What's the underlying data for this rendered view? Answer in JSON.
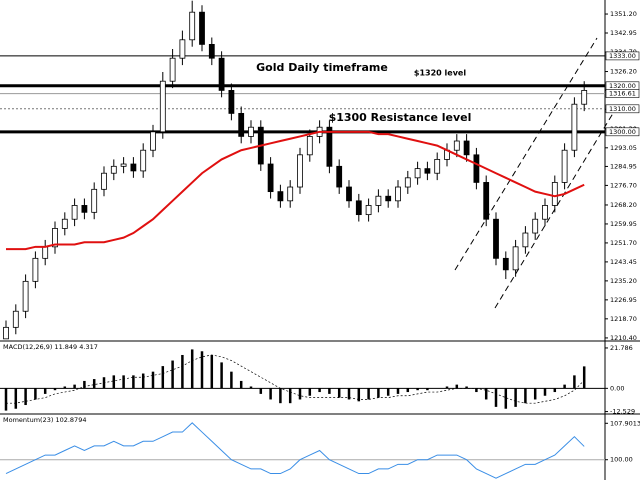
{
  "chart_data": {
    "type": "candlestick",
    "ylim": [
      1209.5,
      1357.3
    ],
    "yticks": [
      {
        "value": 1351.2,
        "label": "1351.20"
      },
      {
        "value": 1342.95,
        "label": "1342.95"
      },
      {
        "value": 1334.7,
        "label": "1334.70"
      },
      {
        "value": 1326.2,
        "label": "1326.20"
      },
      {
        "value": 1318.05,
        "label": "1318.05"
      },
      {
        "value": 1309.8,
        "label": "1309.80"
      },
      {
        "value": 1301.3,
        "label": "1301.30"
      },
      {
        "value": 1293.05,
        "label": "1293.05"
      },
      {
        "value": 1284.95,
        "label": "1284.95"
      },
      {
        "value": 1276.7,
        "label": "1276.70"
      },
      {
        "value": 1268.2,
        "label": "1268.20"
      },
      {
        "value": 1259.95,
        "label": "1259.95"
      },
      {
        "value": 1251.7,
        "label": "1251.70"
      },
      {
        "value": 1243.45,
        "label": "1243.45"
      },
      {
        "value": 1235.2,
        "label": "1235.20"
      },
      {
        "value": 1226.95,
        "label": "1226.95"
      },
      {
        "value": 1218.7,
        "label": "1218.70"
      },
      {
        "value": 1210.4,
        "label": "1210.40"
      }
    ],
    "annotations": [
      "Gold Daily timeframe",
      "$1320 level",
      "$1300 Resistance level"
    ],
    "levels": [
      {
        "value": 1333,
        "label": "1333.00",
        "style": "thin"
      },
      {
        "value": 1320,
        "label": "1320.00",
        "style": "thick"
      },
      {
        "value": 1316.61,
        "label": "1316.61",
        "style": "grey"
      },
      {
        "value": 1310,
        "label": "1310.00",
        "style": "dotted"
      },
      {
        "value": 1300,
        "label": "1300.00",
        "style": "thick"
      }
    ],
    "open": [
      1210,
      1215,
      1222,
      1235,
      1245,
      1250,
      1258,
      1262,
      1268,
      1265,
      1275,
      1282,
      1285,
      1286,
      1283,
      1292,
      1300,
      1322,
      1332,
      1340,
      1352,
      1338,
      1332,
      1318,
      1308,
      1298,
      1302,
      1286,
      1274,
      1270,
      1276,
      1290,
      1298,
      1302,
      1285,
      1276,
      1270,
      1264,
      1268,
      1272,
      1270,
      1276,
      1280,
      1284,
      1282,
      1288,
      1292,
      1296,
      1290,
      1278,
      1262,
      1245,
      1240,
      1250,
      1256,
      1262,
      1268,
      1278,
      1292,
      1312
    ],
    "high": [
      1218,
      1225,
      1238,
      1248,
      1253,
      1261,
      1265,
      1271,
      1271,
      1278,
      1285,
      1288,
      1289,
      1289,
      1295,
      1303,
      1326,
      1336,
      1344,
      1357,
      1355,
      1341,
      1335,
      1321,
      1311,
      1305,
      1305,
      1289,
      1277,
      1279,
      1293,
      1301,
      1305,
      1305,
      1288,
      1279,
      1273,
      1271,
      1275,
      1275,
      1279,
      1283,
      1287,
      1287,
      1291,
      1295,
      1299,
      1299,
      1293,
      1281,
      1265,
      1248,
      1253,
      1259,
      1265,
      1271,
      1281,
      1295,
      1315,
      1322
    ],
    "low": [
      1210,
      1212,
      1219,
      1232,
      1242,
      1247,
      1255,
      1259,
      1262,
      1262,
      1272,
      1279,
      1282,
      1280,
      1280,
      1289,
      1297,
      1319,
      1329,
      1337,
      1335,
      1329,
      1315,
      1305,
      1295,
      1295,
      1283,
      1271,
      1267,
      1267,
      1273,
      1287,
      1295,
      1282,
      1273,
      1267,
      1261,
      1261,
      1265,
      1267,
      1267,
      1273,
      1277,
      1279,
      1279,
      1285,
      1289,
      1287,
      1275,
      1259,
      1242,
      1236,
      1237,
      1247,
      1253,
      1259,
      1265,
      1275,
      1289,
      1309
    ],
    "close": [
      1215,
      1222,
      1235,
      1245,
      1250,
      1258,
      1262,
      1268,
      1265,
      1275,
      1282,
      1285,
      1286,
      1283,
      1292,
      1300,
      1322,
      1332,
      1340,
      1352,
      1338,
      1332,
      1318,
      1308,
      1298,
      1302,
      1286,
      1274,
      1270,
      1276,
      1290,
      1298,
      1302,
      1285,
      1276,
      1270,
      1264,
      1268,
      1272,
      1270,
      1276,
      1280,
      1284,
      1282,
      1288,
      1292,
      1296,
      1290,
      1278,
      1262,
      1245,
      1240,
      1250,
      1256,
      1262,
      1268,
      1278,
      1292,
      1312,
      1318
    ],
    "ma": {
      "color": "#e01010",
      "values": [
        1249,
        1249,
        1249,
        1250,
        1250,
        1251,
        1251,
        1251,
        1252,
        1252,
        1252,
        1253,
        1254,
        1256,
        1259,
        1262,
        1266,
        1270,
        1274,
        1278,
        1282,
        1285,
        1288,
        1290,
        1292,
        1293,
        1294,
        1295,
        1296,
        1297,
        1298,
        1299,
        1300,
        1300,
        1300,
        1300,
        1300,
        1300,
        1299,
        1299,
        1298,
        1297,
        1296,
        1295,
        1294,
        1292,
        1290,
        1288,
        1286,
        1284,
        1282,
        1280,
        1278,
        1276,
        1274,
        1273,
        1272,
        1273,
        1275,
        1277
      ]
    },
    "macd": {
      "label": "MACD(12,26,9) 11.849 4.317",
      "ylim": [
        -13.3,
        25
      ],
      "yticks": [
        21.786,
        {
          "value": 0,
          "label": "0.00"
        },
        -12.529
      ],
      "histogram": [
        -12,
        -11,
        -9,
        -6,
        -3,
        -1,
        1,
        2,
        4,
        5,
        6,
        7,
        7,
        7,
        8,
        9,
        12,
        15,
        18,
        21,
        20,
        18,
        14,
        9,
        4,
        1,
        -3,
        -6,
        -8,
        -8,
        -6,
        -4,
        -2,
        -3,
        -5,
        -6,
        -7,
        -6,
        -5,
        -4,
        -3,
        -2,
        -1,
        -1,
        0,
        1,
        2,
        1,
        -2,
        -6,
        -10,
        -11,
        -10,
        -8,
        -6,
        -4,
        -2,
        2,
        7,
        11.849
      ],
      "signal": [
        -8,
        -8,
        -7,
        -6,
        -5,
        -3,
        -2,
        -1,
        1,
        2,
        3,
        4,
        5,
        6,
        6,
        7,
        8,
        10,
        12,
        15,
        17,
        18,
        17,
        15,
        12,
        9,
        6,
        3,
        0,
        -2,
        -4,
        -5,
        -5,
        -5,
        -5,
        -5,
        -6,
        -6,
        -5,
        -5,
        -4,
        -4,
        -3,
        -2,
        -2,
        -1,
        0,
        0,
        0,
        -1,
        -3,
        -5,
        -7,
        -8,
        -8,
        -7,
        -6,
        -4,
        -1,
        4.317
      ]
    },
    "momentum": {
      "label": "Momentum(23) 102.8794",
      "color": "#3a8ee6",
      "ylim": [
        95.6,
        109.7
      ],
      "yticks": [
        107.9013,
        {
          "value": 100,
          "label": "100.00"
        }
      ],
      "values": [
        97,
        98,
        99,
        100,
        101,
        101,
        102,
        103,
        102,
        103,
        103,
        104,
        103,
        103,
        104,
        104,
        105,
        106,
        106,
        108,
        106,
        104,
        102,
        100,
        99,
        98,
        98,
        97,
        97,
        98,
        100,
        101,
        102,
        100,
        99,
        98,
        97,
        97,
        98,
        98,
        99,
        99,
        100,
        100,
        101,
        101,
        101,
        100,
        98,
        97,
        96,
        97,
        98,
        99,
        99,
        100,
        101,
        103,
        105,
        102.8794
      ]
    }
  }
}
